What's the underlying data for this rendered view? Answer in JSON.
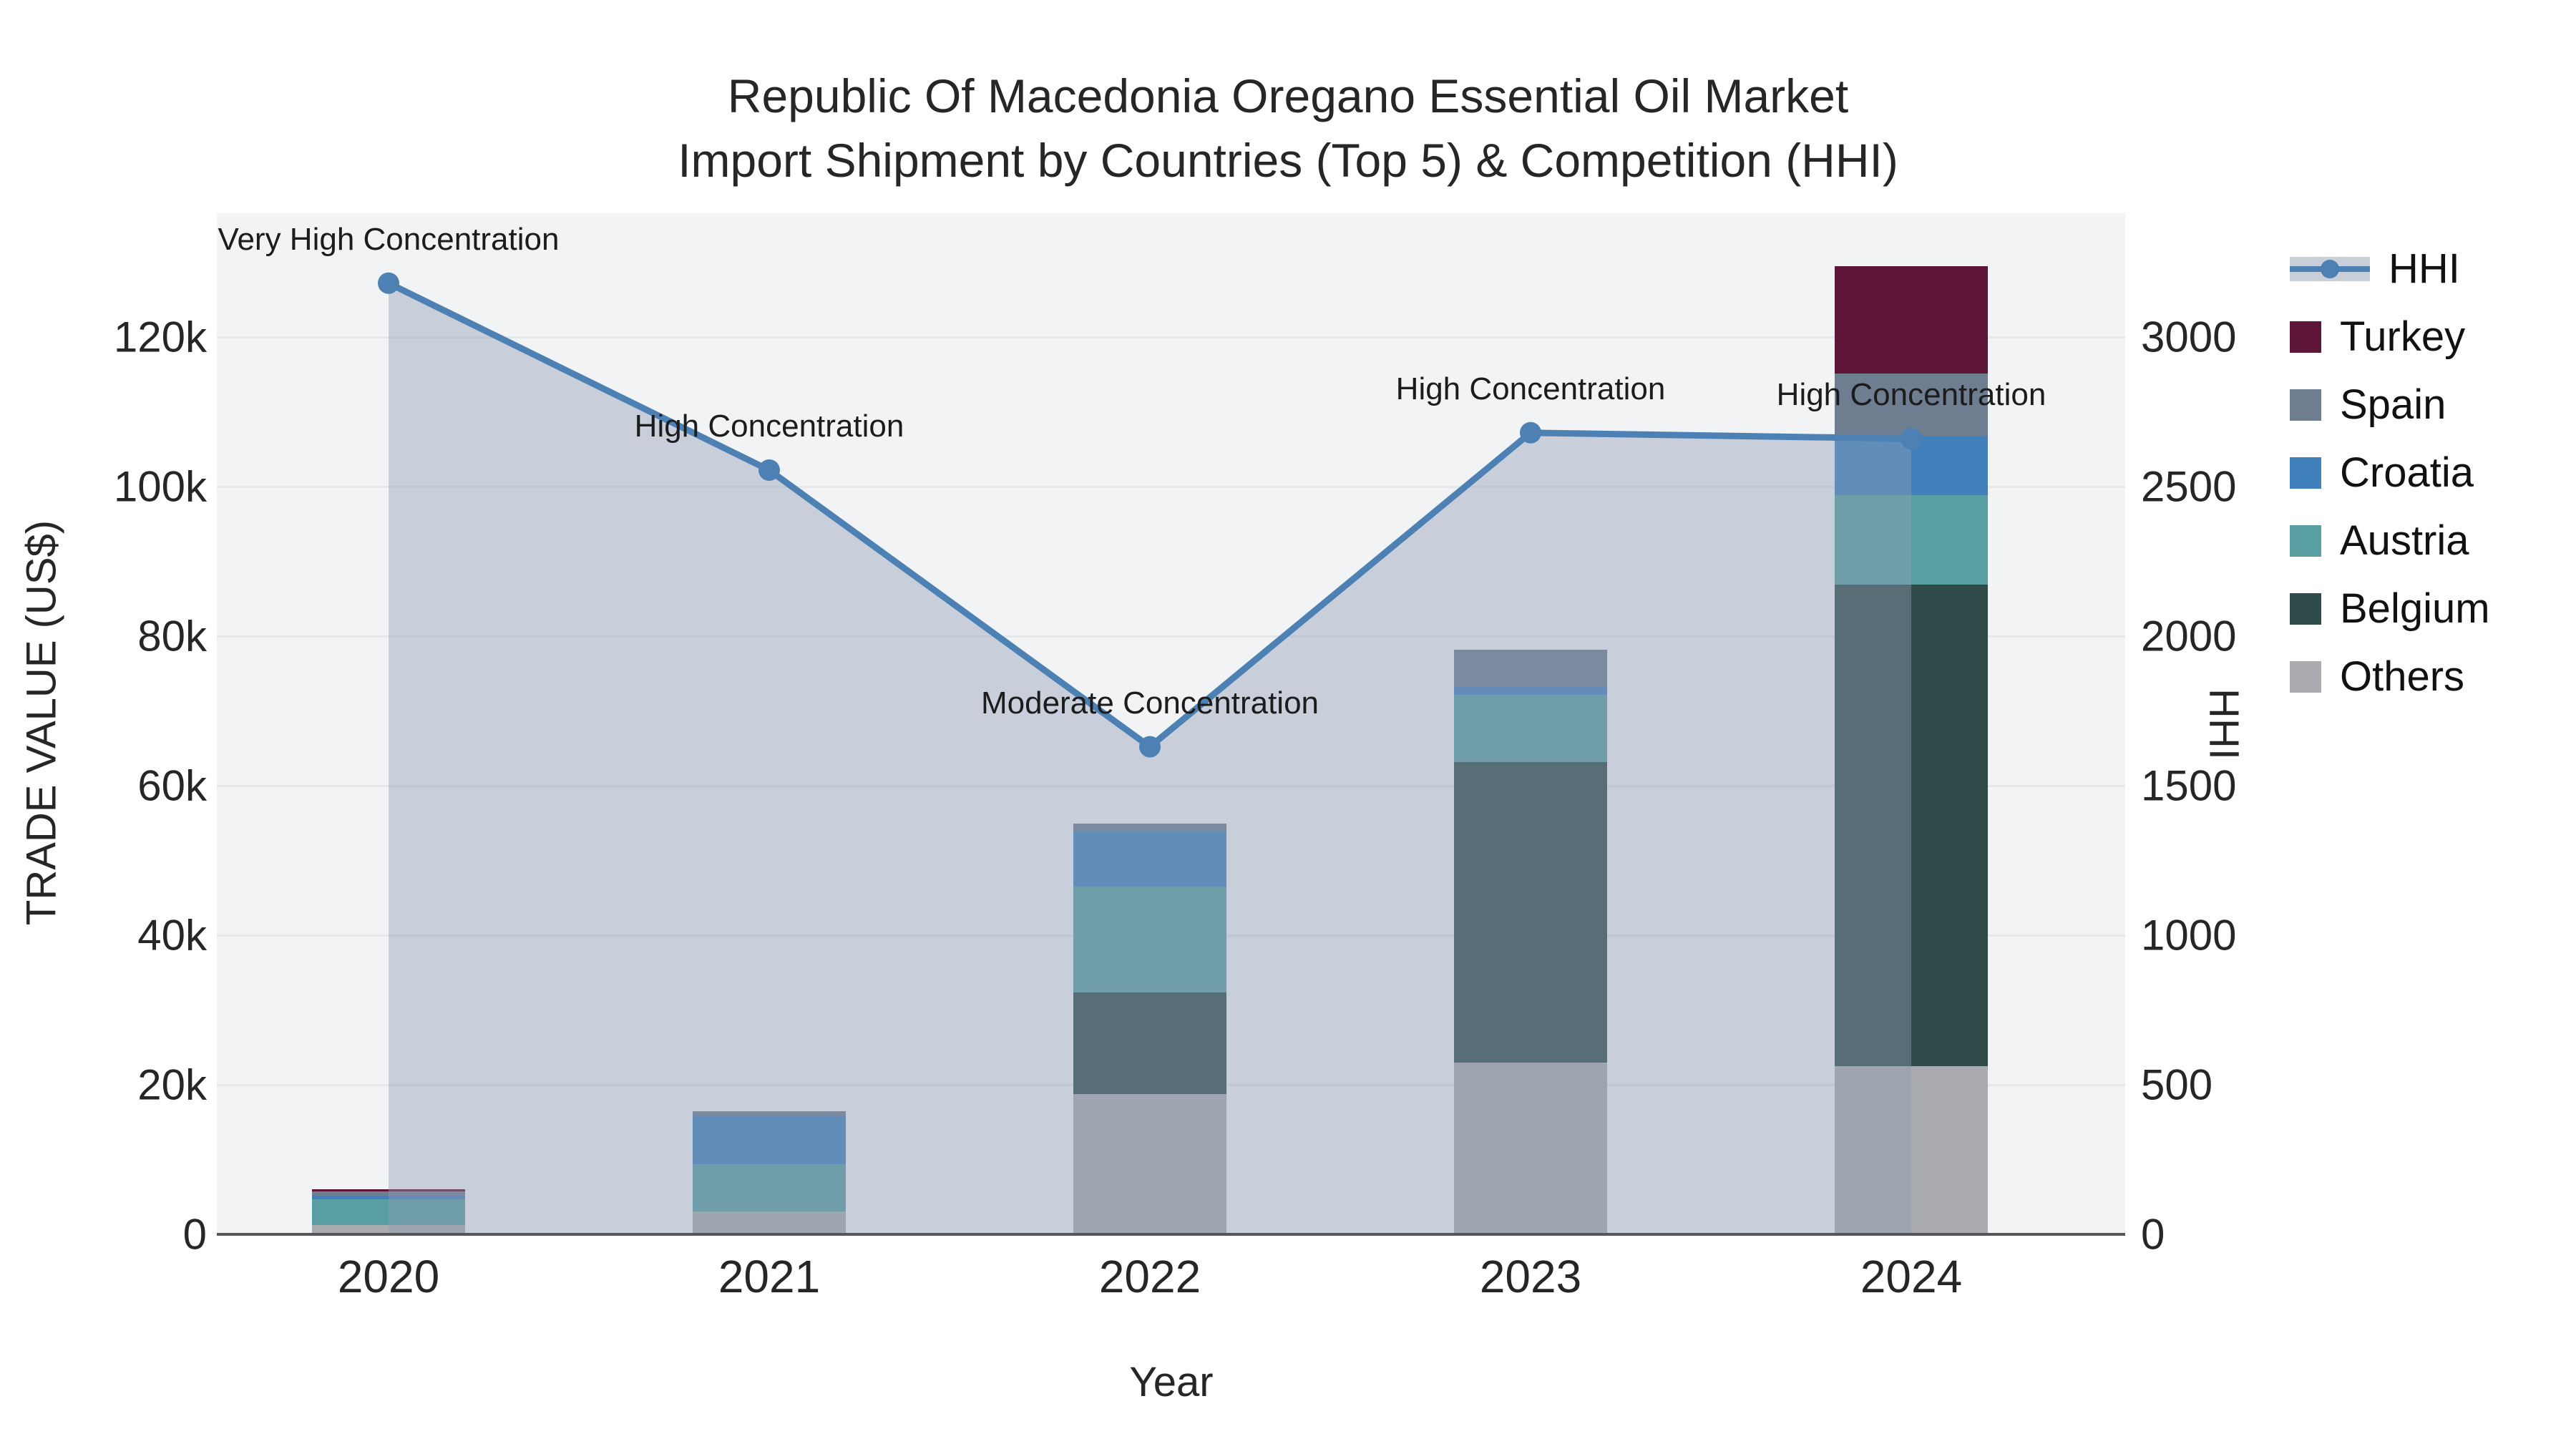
{
  "title": {
    "line1": "Republic Of Macedonia Oregano Essential Oil Market",
    "line2": "Import Shipment by Countries (Top 5) & Competition (HHI)"
  },
  "axes": {
    "x": {
      "title": "Year",
      "categories": [
        "2020",
        "2021",
        "2022",
        "2023",
        "2024"
      ]
    },
    "y_left": {
      "title": "TRADE VALUE (US$)",
      "tick_labels": [
        "0",
        "20k",
        "40k",
        "60k",
        "80k",
        "100k",
        "120k"
      ],
      "tick_values_k": [
        0,
        20,
        40,
        60,
        80,
        100,
        120
      ]
    },
    "y_right": {
      "title": "HHI",
      "tick_labels": [
        "0",
        "500",
        "1000",
        "1500",
        "2000",
        "2500",
        "3000"
      ],
      "tick_values": [
        0,
        500,
        1000,
        1500,
        2000,
        2500,
        3000
      ]
    }
  },
  "legend": {
    "items": [
      {
        "label": "HHI",
        "type": "line",
        "color": "#4d81b4"
      },
      {
        "label": "Turkey",
        "type": "square",
        "color": "#5e1638"
      },
      {
        "label": "Spain",
        "type": "square",
        "color": "#6e7d90"
      },
      {
        "label": "Croatia",
        "type": "square",
        "color": "#4181bb"
      },
      {
        "label": "Austria",
        "type": "square",
        "color": "#599ea0"
      },
      {
        "label": "Belgium",
        "type": "square",
        "color": "#2f4c4a"
      },
      {
        "label": "Others",
        "type": "square",
        "color": "#a9abae"
      }
    ]
  },
  "chart_data": {
    "type": "bar+line",
    "title": "Republic Of Macedonia Oregano Essential Oil Market — Import Shipment by Countries (Top 5) & Competition (HHI)",
    "categories": [
      "2020",
      "2021",
      "2022",
      "2023",
      "2024"
    ],
    "bar_unit": "thousand US$",
    "stack_order_bottom_to_top": [
      "Others",
      "Belgium",
      "Austria",
      "Croatia",
      "Spain",
      "Turkey"
    ],
    "series": [
      {
        "name": "Others",
        "color": "#a9abae",
        "values_k_usd": [
          1.2,
          3.1,
          18.8,
          23.0,
          22.5
        ]
      },
      {
        "name": "Belgium",
        "color": "#2f4c4a",
        "values_k_usd": [
          0,
          0,
          13.5,
          40.2,
          64.4
        ]
      },
      {
        "name": "Austria",
        "color": "#599ea0",
        "values_k_usd": [
          3.5,
          6.3,
          14.2,
          9.0,
          12.0
        ]
      },
      {
        "name": "Croatia",
        "color": "#4181bb",
        "values_k_usd": [
          0.5,
          6.4,
          7.4,
          1.1,
          7.9
        ]
      },
      {
        "name": "Spain",
        "color": "#6e7d90",
        "values_k_usd": [
          0.5,
          0.7,
          1.0,
          4.9,
          8.3
        ]
      },
      {
        "name": "Turkey",
        "color": "#5e1638",
        "values_k_usd": [
          0.3,
          0,
          0,
          0,
          14.4
        ]
      }
    ],
    "line_series": {
      "name": "HHI",
      "values": [
        3180,
        2555,
        1630,
        2680,
        2660
      ],
      "color": "#4d81b4",
      "area_fill": "rgba(144,158,180,0.42)",
      "axis": "right"
    },
    "annotations": [
      {
        "category": "2020",
        "text": "Very High Concentration"
      },
      {
        "category": "2021",
        "text": "High Concentration"
      },
      {
        "category": "2022",
        "text": "Moderate Concentration"
      },
      {
        "category": "2023",
        "text": "High Concentration"
      },
      {
        "category": "2024",
        "text": "High Concentration"
      }
    ],
    "y_left_range_k": [
      0,
      136.6
    ],
    "y_right_range": [
      0,
      3415
    ],
    "grid": "horizontal-only",
    "legend_position": "right",
    "plot_bg": "#f2f3f4"
  }
}
